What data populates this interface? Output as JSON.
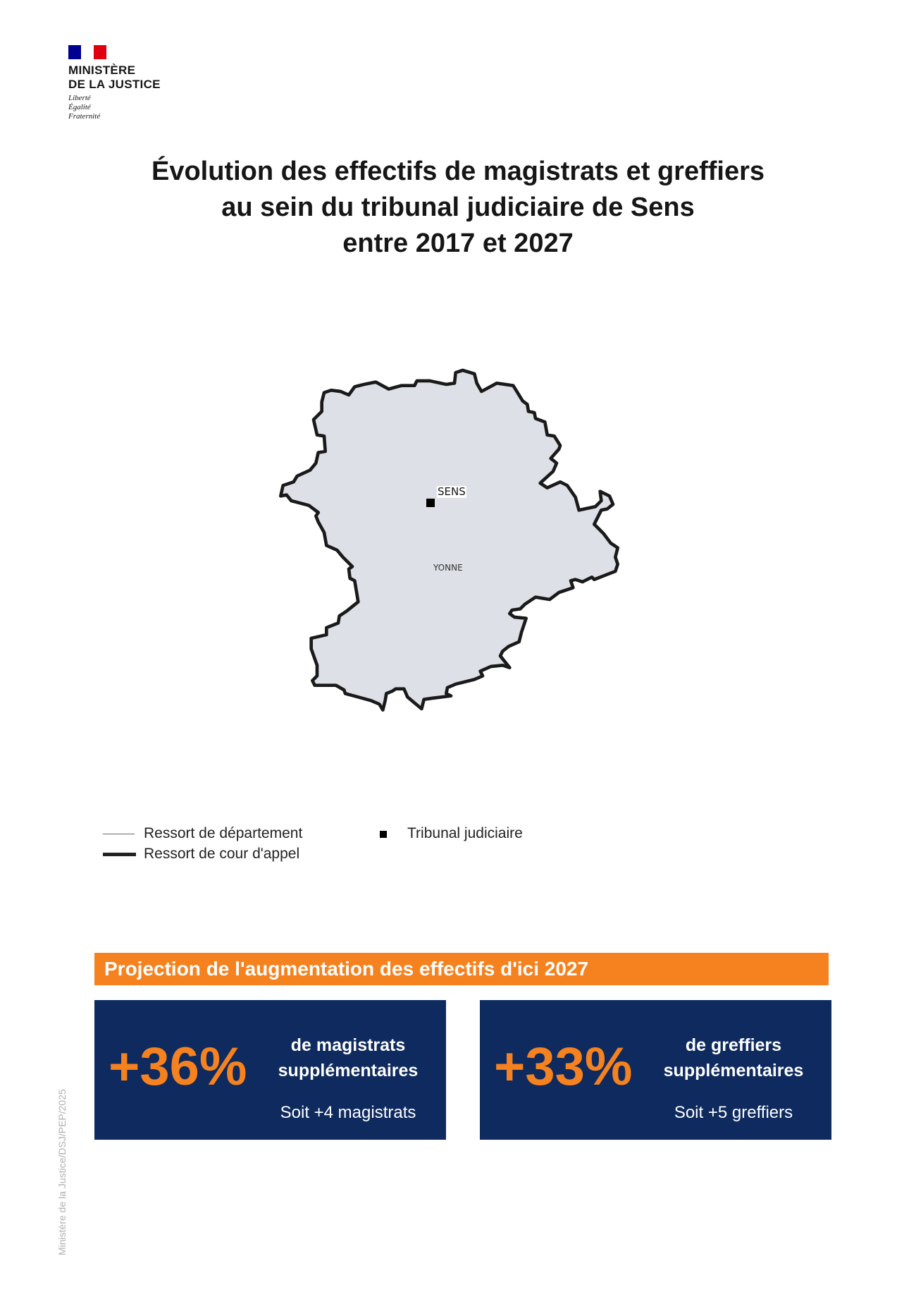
{
  "logo": {
    "name_line1": "MINISTÈRE",
    "name_line2": "DE LA JUSTICE",
    "motto": [
      "Liberté",
      "Égalité",
      "Fraternité"
    ],
    "flag_colors": [
      "#000091",
      "#ffffff",
      "#e1000f"
    ]
  },
  "title": {
    "line1": "Évolution des effectifs de magistrats et greffiers",
    "line2": "au sein du tribunal judiciaire de Sens",
    "line3": "entre 2017 et 2027"
  },
  "map": {
    "city_label": "SENS",
    "department_label": "YONNE",
    "fill_color": "#dde0e6"
  },
  "legend": {
    "department": "Ressort de département",
    "court_of_appeal": "Ressort de cour d'appel",
    "tribunal": "Tribunal judiciaire"
  },
  "projection": {
    "heading": "Projection de l'augmentation des effectifs d'ici 2027",
    "accent_color": "#f5821f",
    "box_color": "#0e2a5f",
    "cards": [
      {
        "value": "+36%",
        "desc_line1": "de magistrats",
        "desc_line2": "supplémentaires",
        "detail": "Soit +4 magistrats"
      },
      {
        "value": "+33%",
        "desc_line1": "de greffiers",
        "desc_line2": "supplémentaires",
        "detail": "Soit +5 greffiers"
      }
    ]
  },
  "credit": "Ministère de la Justice/DSJ/PEP/2025"
}
